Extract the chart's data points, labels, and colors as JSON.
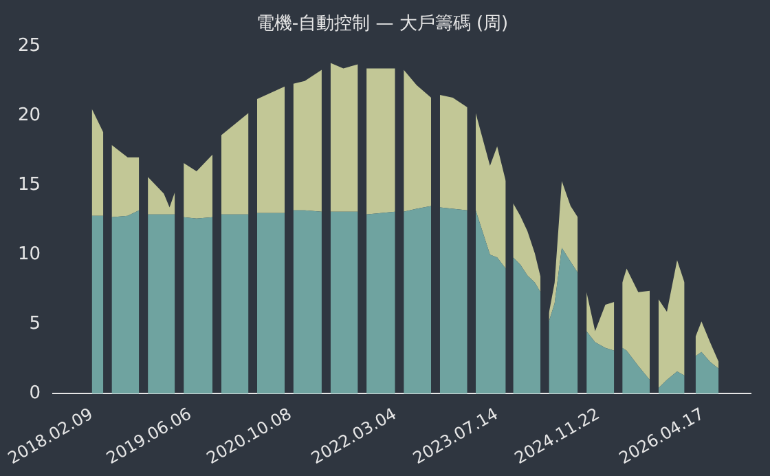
{
  "chart_data": {
    "type": "area",
    "stacked": true,
    "title": "電機-自動控制 — 大戶籌碼 (周)",
    "x": [
      "2018-02-09",
      "2018-04-06",
      "2018-04-26",
      "2018-05-17",
      "2018-08-03",
      "2018-09-28",
      "2018-10-20",
      "2018-11-10",
      "2019-01-27",
      "2019-02-24",
      "2019-03-22",
      "2019-04-13",
      "2019-05-04",
      "2019-07-06",
      "2019-09-22",
      "2019-10-13",
      "2019-11-04",
      "2020-03-16",
      "2020-04-06",
      "2020-04-27",
      "2020-09-09",
      "2020-09-30",
      "2020-10-21",
      "2020-12-16",
      "2021-03-09",
      "2021-03-31",
      "2021-04-21",
      "2021-06-23",
      "2021-09-02",
      "2021-09-23",
      "2021-10-14",
      "2022-03-03",
      "2022-03-24",
      "2022-04-14",
      "2022-06-16",
      "2022-08-26",
      "2022-09-16",
      "2022-10-08",
      "2022-12-10",
      "2023-02-19",
      "2023-03-10",
      "2023-04-01",
      "2023-06-10",
      "2023-07-15",
      "2023-08-26",
      "2023-09-09",
      "2023-10-01",
      "2023-11-05",
      "2023-12-10",
      "2024-01-15",
      "2024-02-12",
      "2024-03-03",
      "2024-03-24",
      "2024-04-21",
      "2024-05-26",
      "2024-07-08",
      "2024-08-12",
      "2024-09-03",
      "2024-09-24",
      "2024-11-05",
      "2024-12-25",
      "2025-02-06",
      "2025-02-27",
      "2025-03-18",
      "2025-04-08",
      "2025-06-04",
      "2025-07-30",
      "2025-08-20",
      "2025-09-11",
      "2025-10-22",
      "2025-12-11",
      "2026-01-16",
      "2026-02-19",
      "2026-03-11",
      "2026-04-09",
      "2026-05-21",
      "2026-07-02"
    ],
    "series": [
      {
        "color": "#6fa3a0",
        "values": [
          12.8,
          12.8,
          null,
          12.7,
          12.8,
          13.2,
          null,
          12.9,
          12.9,
          12.9,
          12.9,
          null,
          12.7,
          12.6,
          12.7,
          null,
          12.9,
          12.9,
          null,
          13.0,
          13.0,
          null,
          13.2,
          13.2,
          13.1,
          null,
          13.1,
          13.1,
          13.1,
          null,
          12.9,
          13.1,
          null,
          13.1,
          13.3,
          13.5,
          null,
          13.4,
          13.3,
          13.2,
          null,
          13.2,
          10.0,
          9.8,
          9.0,
          null,
          9.8,
          9.3,
          8.5,
          8.0,
          7.3,
          null,
          5.2,
          6.5,
          10.5,
          9.5,
          8.7,
          null,
          4.5,
          3.7,
          3.3,
          3.1,
          null,
          3.3,
          3.1,
          2.0,
          1.0,
          null,
          0.4,
          1.0,
          1.6,
          1.3,
          null,
          2.7,
          3.0,
          2.3,
          1.8
        ]
      },
      {
        "color": "#c2c796",
        "values": [
          7.7,
          6.0,
          null,
          5.2,
          4.2,
          3.8,
          null,
          2.7,
          1.5,
          0.5,
          1.6,
          null,
          3.9,
          3.4,
          4.5,
          null,
          5.7,
          7.3,
          null,
          8.2,
          9.1,
          null,
          9.1,
          9.3,
          10.2,
          null,
          10.7,
          10.3,
          10.6,
          null,
          10.5,
          10.3,
          null,
          10.2,
          8.9,
          7.8,
          null,
          8.1,
          8.0,
          7.4,
          null,
          7.0,
          6.4,
          8.0,
          6.3,
          null,
          3.9,
          3.5,
          3.2,
          2.1,
          1.1,
          null,
          0.6,
          1.5,
          4.8,
          4.0,
          4.0,
          null,
          2.8,
          0.8,
          3.1,
          3.5,
          null,
          4.7,
          5.9,
          5.3,
          6.4,
          null,
          6.4,
          4.9,
          8.0,
          6.7,
          null,
          1.4,
          2.2,
          1.4,
          0.5
        ]
      }
    ],
    "xlim": [
      "2017-08-03",
      "2026-12-06"
    ],
    "xticks": [
      {
        "value": "2018-02-09",
        "label": "2018.02.09"
      },
      {
        "value": "2019-06-06",
        "label": "2019.06.06"
      },
      {
        "value": "2020-10-08",
        "label": "2020.10.08"
      },
      {
        "value": "2022-03-04",
        "label": "2022.03.04"
      },
      {
        "value": "2023-07-14",
        "label": "2023.07.14"
      },
      {
        "value": "2024-11-22",
        "label": "2024.11.22"
      },
      {
        "value": "2026-04-17",
        "label": "2026.04.17"
      }
    ],
    "ylim": [
      0,
      25
    ],
    "yticks": [
      0,
      5,
      10,
      15,
      20,
      25
    ],
    "grid": false,
    "legend": false
  }
}
